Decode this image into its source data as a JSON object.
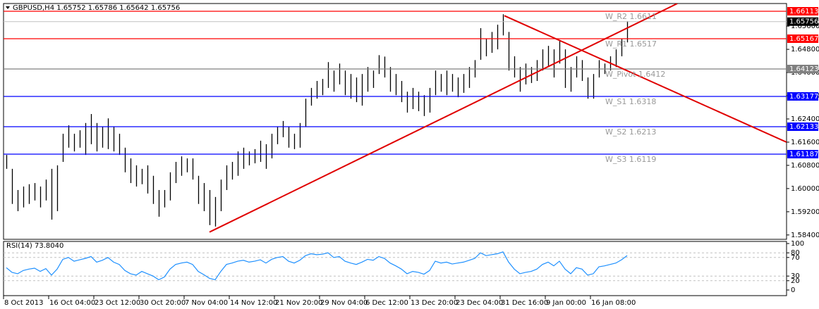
{
  "chart_data": [
    {
      "type": "ohlc",
      "title": "GBPUSD,H4  1.65752 1.65786 1.65642 1.65756",
      "color": "#000000",
      "high": [
        1.6116,
        1.6068,
        1.5995,
        1.6007,
        1.6015,
        1.6019,
        1.6007,
        1.6031,
        1.6068,
        1.608,
        1.6189,
        1.6218,
        1.6189,
        1.6201,
        1.6226,
        1.6257,
        1.6226,
        1.6213,
        1.6242,
        1.6213,
        1.6189,
        1.6141,
        1.6104,
        1.608,
        1.6068,
        1.608,
        1.6044,
        1.5995,
        1.5995,
        1.6056,
        1.6092,
        1.6111,
        1.6104,
        1.6104,
        1.6044,
        1.6019,
        1.5995,
        1.5971,
        1.6031,
        1.608,
        1.6092,
        1.6128,
        1.6141,
        1.6128,
        1.6136,
        1.6165,
        1.6153,
        1.6189,
        1.6213,
        1.6233,
        1.6213,
        1.6189,
        1.6226,
        1.631,
        1.6347,
        1.6371,
        1.6378,
        1.6436,
        1.6407,
        1.6431,
        1.6407,
        1.6395,
        1.6383,
        1.6395,
        1.6419,
        1.6407,
        1.646,
        1.6455,
        1.6419,
        1.6395,
        1.6371,
        1.6334,
        1.6347,
        1.6334,
        1.6322,
        1.6347,
        1.6407,
        1.6395,
        1.6407,
        1.6395,
        1.6383,
        1.6395,
        1.6419,
        1.6443,
        1.6553,
        1.6516,
        1.654,
        1.6565,
        1.6601,
        1.654,
        1.6456,
        1.6419,
        1.6431,
        1.6419,
        1.6443,
        1.648,
        1.6492,
        1.648,
        1.6509,
        1.648,
        1.6419,
        1.6456,
        1.6443,
        1.6383,
        1.6395,
        1.6443,
        1.6431,
        1.6456,
        1.648,
        1.6516,
        1.6577
      ],
      "low": [
        1.6068,
        1.5947,
        1.5922,
        1.5935,
        1.5947,
        1.5959,
        1.5935,
        1.5959,
        1.5893,
        1.5922,
        1.6092,
        1.6141,
        1.6128,
        1.6141,
        1.6116,
        1.6153,
        1.6128,
        1.6141,
        1.6136,
        1.6128,
        1.6116,
        1.6056,
        1.6019,
        1.6007,
        1.6015,
        1.5983,
        1.5947,
        1.5903,
        1.5935,
        1.5959,
        1.6019,
        1.6044,
        1.6056,
        1.6031,
        1.5947,
        1.5922,
        1.5874,
        1.5869,
        1.5922,
        1.5995,
        1.6031,
        1.6044,
        1.6068,
        1.608,
        1.6087,
        1.6092,
        1.6068,
        1.6104,
        1.6153,
        1.6177,
        1.6141,
        1.6136,
        1.6141,
        1.6213,
        1.6286,
        1.631,
        1.6322,
        1.6347,
        1.6334,
        1.6359,
        1.6322,
        1.631,
        1.6298,
        1.6286,
        1.6334,
        1.6347,
        1.6395,
        1.6383,
        1.6334,
        1.6322,
        1.6298,
        1.6262,
        1.6274,
        1.6267,
        1.625,
        1.6262,
        1.6322,
        1.6334,
        1.6322,
        1.6334,
        1.6315,
        1.633,
        1.6347,
        1.6383,
        1.6444,
        1.6456,
        1.6468,
        1.648,
        1.6528,
        1.6407,
        1.6383,
        1.6334,
        1.6359,
        1.6364,
        1.6371,
        1.6407,
        1.6419,
        1.6383,
        1.6431,
        1.6347,
        1.6334,
        1.6383,
        1.6371,
        1.631,
        1.631,
        1.6383,
        1.6395,
        1.6407,
        1.6419,
        1.6456,
        1.6504
      ],
      "xlim": [
        -0.5,
        138.25
      ],
      "ylim": [
        1.5825,
        1.6638
      ],
      "xticks": [
        {
          "value": 0,
          "label": "8 Oct 2013"
        },
        {
          "value": 8,
          "label": "16 Oct 04:00"
        },
        {
          "value": 16,
          "label": "23 Oct 12:00"
        },
        {
          "value": 24,
          "label": "30 Oct 20:00"
        },
        {
          "value": 32,
          "label": "7 Nov 04:00"
        },
        {
          "value": 40,
          "label": "14 Nov 12:00"
        },
        {
          "value": 48,
          "label": "21 Nov 20:00"
        },
        {
          "value": 56,
          "label": "29 Nov 04:00"
        },
        {
          "value": 64,
          "label": "6 Dec 12:00"
        },
        {
          "value": 72,
          "label": "13 Dec 20:00"
        },
        {
          "value": 80,
          "label": "23 Dec 04:00"
        },
        {
          "value": 88,
          "label": "31 Dec 16:00"
        },
        {
          "value": 96,
          "label": "9 Jan 00:00"
        },
        {
          "value": 104,
          "label": "16 Jan 08:00"
        }
      ],
      "yticks": [
        {
          "value": 1.584,
          "label": "1.58400"
        },
        {
          "value": 1.592,
          "label": "1.59200"
        },
        {
          "value": 1.6,
          "label": "1.60000"
        },
        {
          "value": 1.608,
          "label": "1.60800"
        },
        {
          "value": 1.616,
          "label": "1.61600"
        },
        {
          "value": 1.624,
          "label": "1.62400"
        },
        {
          "value": 1.632,
          "label": "1.63200"
        },
        {
          "value": 1.64,
          "label": "1.64000"
        },
        {
          "value": 1.648,
          "label": "1.64800"
        },
        {
          "value": 1.656,
          "label": "1.65600"
        }
      ],
      "levels": [
        {
          "value": 1.66113,
          "color": "#ff0000",
          "pivot_label": "W_R2 1.6611"
        },
        {
          "value": 1.65167,
          "color": "#ff0000",
          "pivot_label": "W_R1 1.6517"
        },
        {
          "value": 1.64123,
          "color": "#808080",
          "pivot_label": "W_Pivot 1.6412"
        },
        {
          "value": 1.63177,
          "color": "#0000ff",
          "pivot_label": "W_S1 1.6318"
        },
        {
          "value": 1.62133,
          "color": "#0000ff",
          "pivot_label": "W_S2 1.6213"
        },
        {
          "value": 1.61187,
          "color": "#0000ff",
          "pivot_label": "W_S3 1.6119"
        }
      ],
      "current_price": 1.65756,
      "trendlines": [
        {
          "color": "#e00000",
          "x": [
            36,
            118.9
          ],
          "y": [
            1.585,
            1.6638
          ]
        },
        {
          "color": "#e00000",
          "x": [
            88.25,
            138.25
          ],
          "y": [
            1.6596,
            1.616
          ]
        }
      ]
    },
    {
      "type": "line",
      "title": "RSI(14) 73.8040",
      "color": "#1e90ff",
      "values": [
        48,
        38,
        35,
        42,
        45,
        47,
        40,
        46,
        32,
        45,
        66,
        70,
        62,
        65,
        68,
        72,
        60,
        64,
        70,
        60,
        55,
        42,
        35,
        32,
        40,
        35,
        30,
        22,
        28,
        45,
        55,
        58,
        60,
        55,
        40,
        33,
        25,
        22,
        40,
        55,
        58,
        62,
        64,
        60,
        62,
        65,
        58,
        66,
        70,
        72,
        62,
        58,
        64,
        74,
        78,
        76,
        77,
        80,
        70,
        72,
        62,
        58,
        55,
        60,
        66,
        64,
        72,
        68,
        58,
        52,
        45,
        35,
        40,
        38,
        34,
        42,
        62,
        58,
        60,
        56,
        58,
        60,
        64,
        68,
        80,
        74,
        76,
        78,
        82,
        60,
        45,
        35,
        38,
        40,
        45,
        55,
        60,
        52,
        62,
        45,
        35,
        48,
        45,
        32,
        35,
        50,
        52,
        55,
        58,
        65,
        74
      ],
      "xlim": [
        -0.5,
        138.25
      ],
      "ylim": [
        0,
        100
      ],
      "yticks": [
        100,
        80,
        70,
        30,
        20,
        0
      ]
    }
  ]
}
